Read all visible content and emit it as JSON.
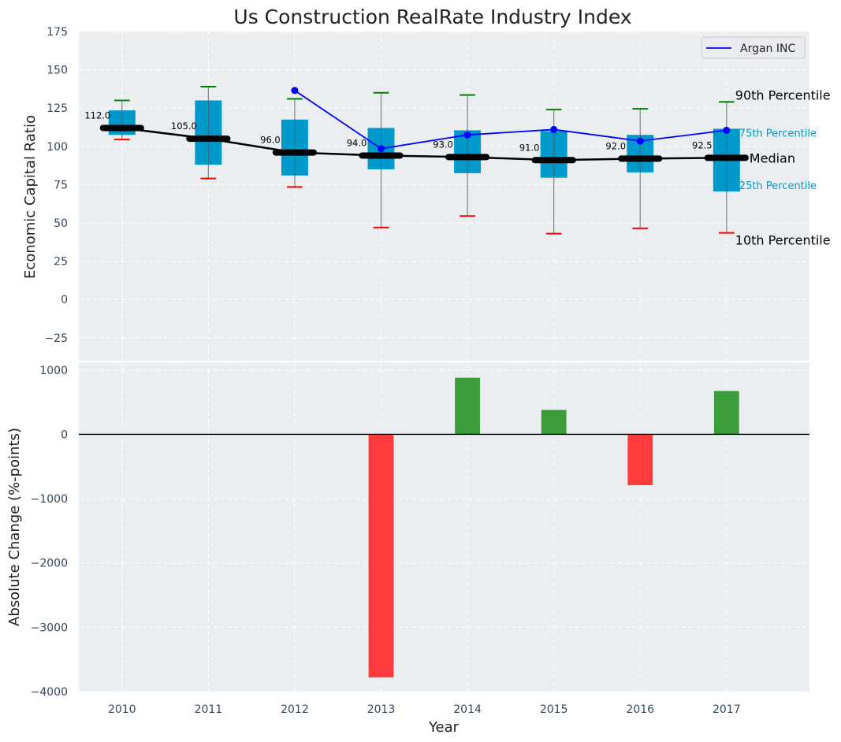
{
  "chart_data": [
    {
      "type": "box",
      "title": "Us Construction RealRate Industry Index",
      "xlabel": "",
      "ylabel": "Economic Capital Ratio",
      "ylim": [
        -40,
        175
      ],
      "xlim": [
        2009.5,
        2017.96
      ],
      "yticks": [
        -25,
        0,
        25,
        50,
        75,
        100,
        125,
        150,
        175
      ],
      "ytick_labels": [
        "−25",
        "0",
        "25",
        "50",
        "75",
        "100",
        "125",
        "150",
        "175"
      ],
      "grid": true,
      "categories": [
        2010,
        2011,
        2012,
        2013,
        2014,
        2015,
        2016,
        2017
      ],
      "p10": [
        104.5,
        79,
        73.5,
        47,
        54.5,
        43,
        46.5,
        43.5
      ],
      "p25": [
        107.5,
        88,
        81,
        85,
        82.5,
        79.5,
        83,
        70.5
      ],
      "median": [
        112.0,
        105.0,
        96.0,
        94.0,
        93.0,
        91.0,
        92.0,
        92.5
      ],
      "median_labels": [
        "112.0",
        "105.0",
        "96.0",
        "94.0",
        "93.0",
        "91.0",
        "92.0",
        "92.5"
      ],
      "p75": [
        123.5,
        130,
        117.5,
        112,
        110.5,
        110,
        107.5,
        111.5
      ],
      "p90": [
        130,
        139,
        131,
        135,
        133.5,
        124,
        124.5,
        129
      ],
      "series": [
        {
          "name": "Argan INC",
          "x": [
            2012,
            2013,
            2014,
            2015,
            2016,
            2017
          ],
          "values": [
            136.5,
            98.5,
            107.5,
            111.0,
            103.5,
            110.5
          ],
          "color": "#0000ff"
        }
      ],
      "legend": {
        "entries": [
          "Argan INC"
        ],
        "placement": "top-right"
      },
      "annotations": {
        "p90": "90th Percentile",
        "p75": "75th Percentile",
        "median": "Median",
        "p25": "25th Percentile",
        "p10": "10th Percentile"
      },
      "colors": {
        "box": "#0099cc",
        "median": "#000000",
        "p90_cap": "#008000",
        "p10_cap": "#ff0000",
        "whisker": "#808080",
        "background": "#eaeef0"
      }
    },
    {
      "type": "bar",
      "title": "",
      "xlabel": "Year",
      "ylabel": "Absolute Change (%-points)",
      "ylim": [
        -4000,
        1120
      ],
      "yticks": [
        -4000,
        -3000,
        -2000,
        -1000,
        0,
        1000
      ],
      "ytick_labels": [
        "−4000",
        "−3000",
        "−2000",
        "−1000",
        "0",
        "1000"
      ],
      "grid": true,
      "categories": [
        2010,
        2011,
        2012,
        2013,
        2014,
        2015,
        2016,
        2017
      ],
      "xtick_labels": [
        "2010",
        "2011",
        "2012",
        "2013",
        "2014",
        "2015",
        "2016",
        "2017"
      ],
      "values": [
        null,
        null,
        null,
        -3780,
        880,
        380,
        -790,
        675
      ],
      "colors": {
        "positive": "#3a9c3a",
        "negative": "#ff3b3b",
        "zero_line": "#000000"
      }
    }
  ]
}
